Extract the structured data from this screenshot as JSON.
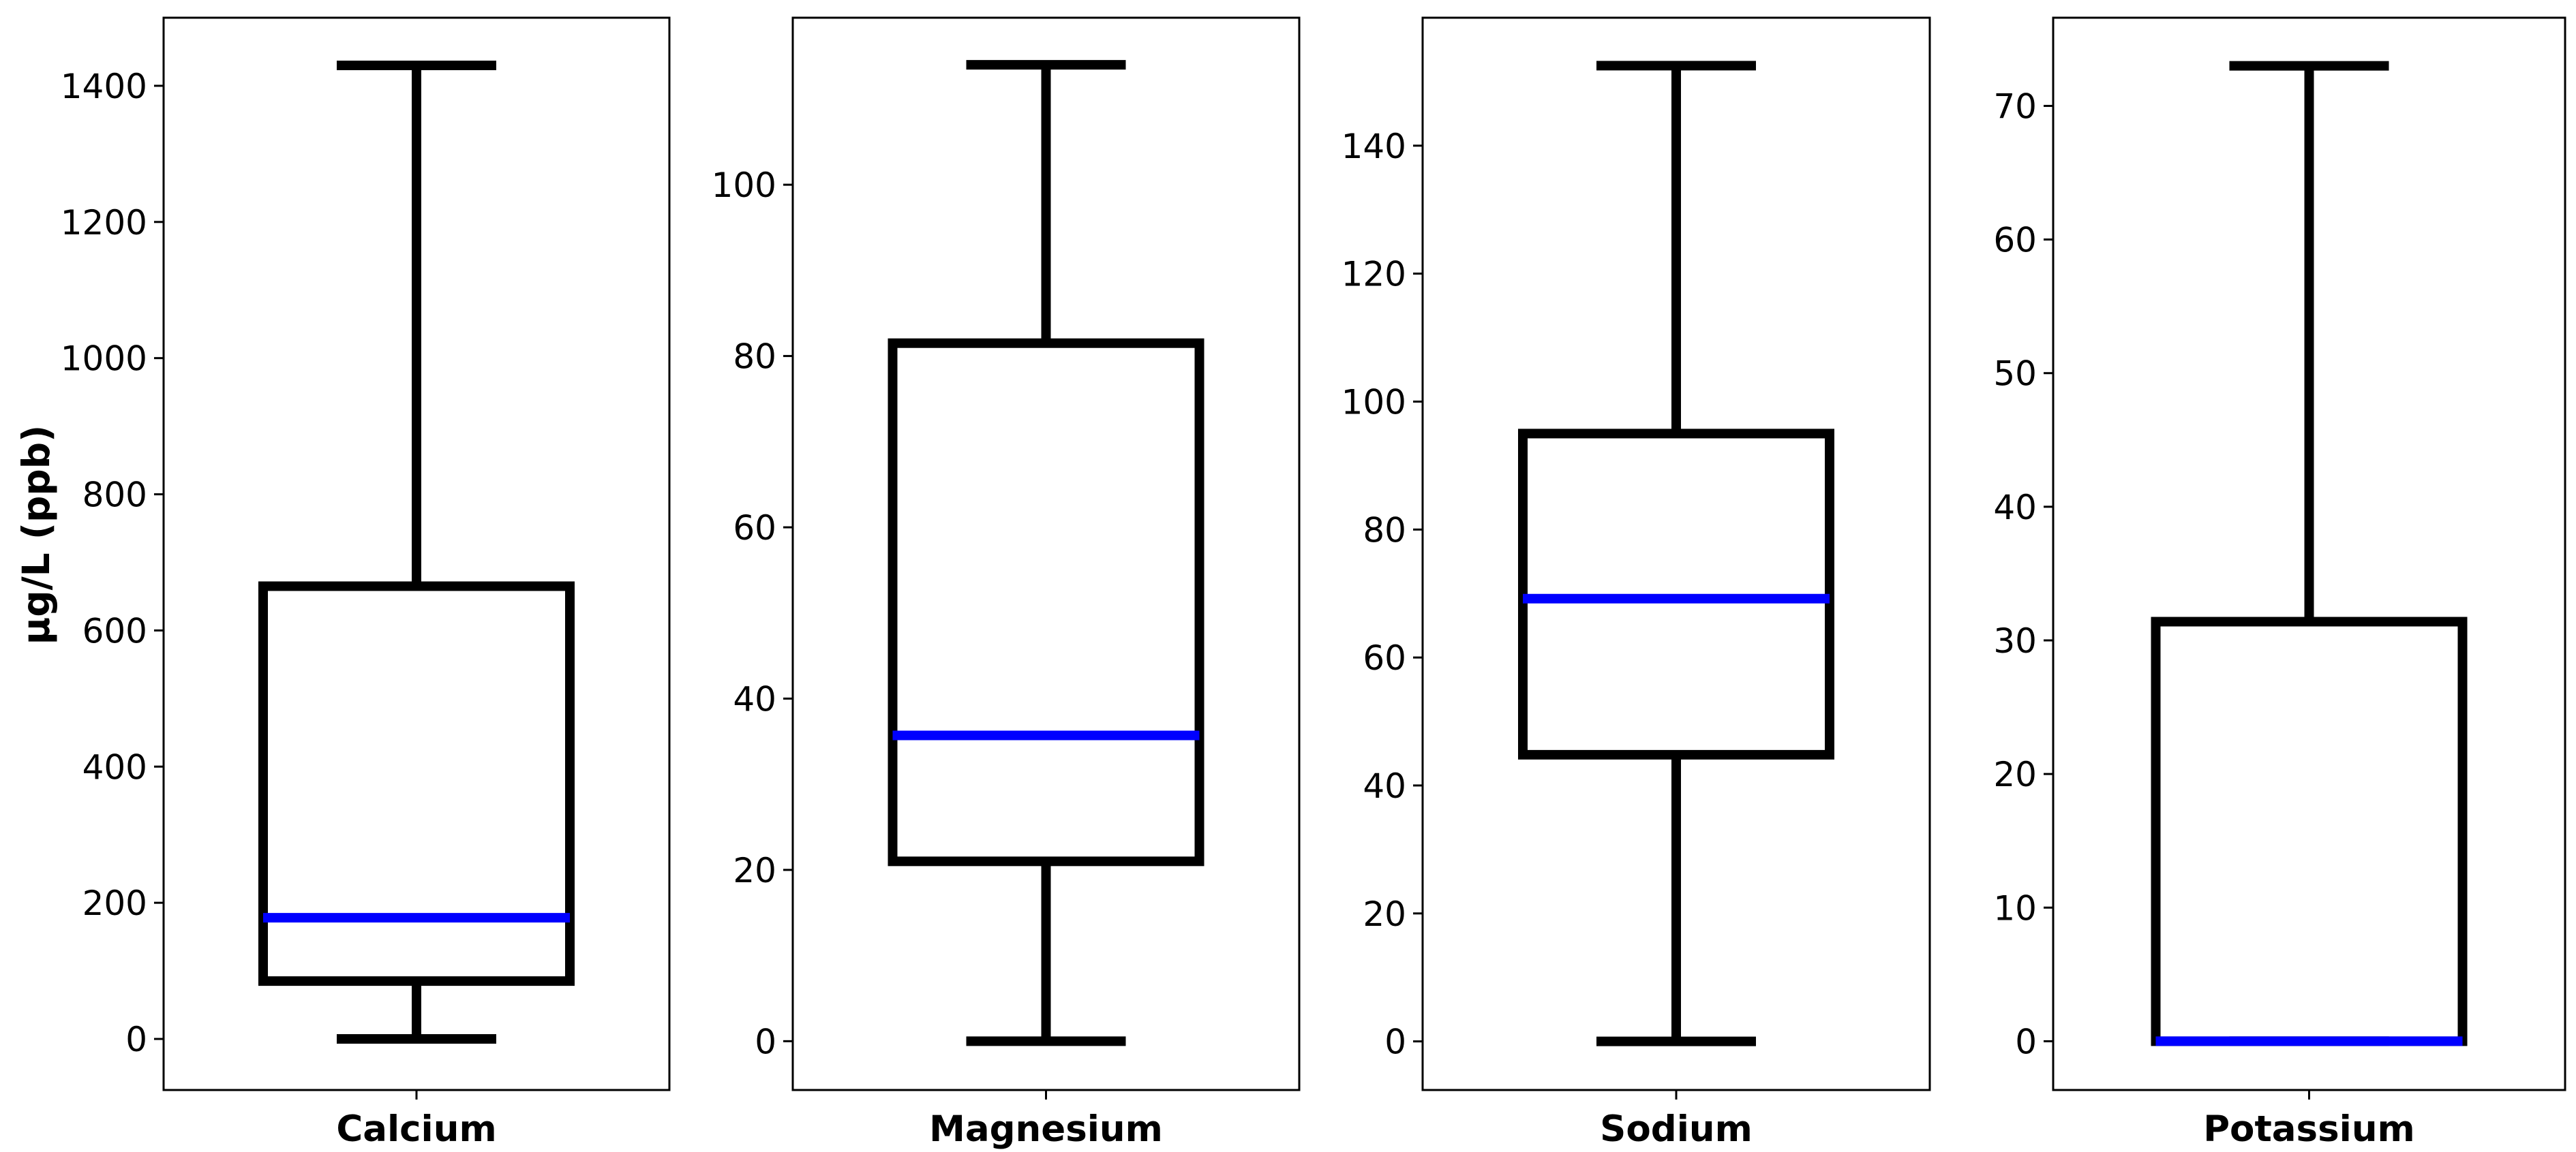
{
  "chart_data": {
    "type": "box",
    "ylabel": "µg/L (ppb)",
    "colors": {
      "box": "#000000",
      "median": "#0000ff"
    },
    "panels": [
      {
        "name": "Calcium",
        "ylim": [
          -75,
          1500
        ],
        "ticks": [
          0,
          200,
          400,
          600,
          800,
          1000,
          1200,
          1400
        ],
        "whisker_low": 0,
        "q1": 85,
        "median": 178,
        "q3": 665,
        "whisker_high": 1430
      },
      {
        "name": "Magnesium",
        "ylim": [
          -5.7,
          119.5
        ],
        "ticks": [
          0,
          20,
          40,
          60,
          80,
          100
        ],
        "whisker_low": 0,
        "q1": 21,
        "median": 35.7,
        "q3": 81.5,
        "whisker_high": 114
      },
      {
        "name": "Sodium",
        "ylim": [
          -7.6,
          160
        ],
        "ticks": [
          0,
          20,
          40,
          60,
          80,
          100,
          120,
          140
        ],
        "whisker_low": 0,
        "q1": 44.8,
        "median": 69.2,
        "q3": 95,
        "whisker_high": 152.5
      },
      {
        "name": "Potassium",
        "ylim": [
          -3.65,
          76.6
        ],
        "ticks": [
          0,
          10,
          20,
          30,
          40,
          50,
          60,
          70
        ],
        "whisker_low": 0,
        "q1": 0,
        "median": 0,
        "q3": 31.4,
        "whisker_high": 73
      }
    ]
  }
}
